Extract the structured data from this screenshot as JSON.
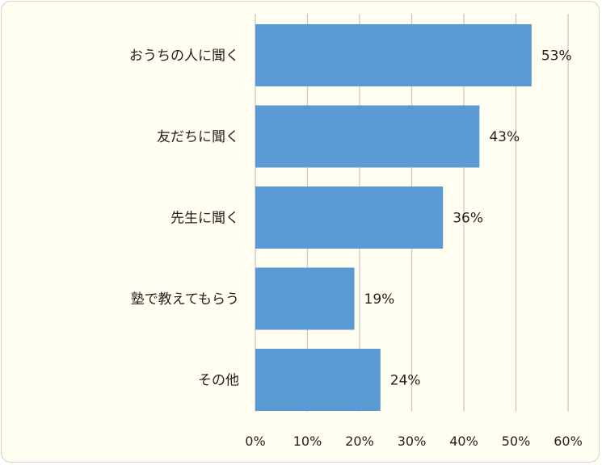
{
  "chart_data": {
    "type": "bar",
    "orientation": "horizontal",
    "categories": [
      "おうちの人に聞く",
      "友だちに聞く",
      "先生に聞く",
      "塾で教えてもらう",
      "その他"
    ],
    "values": [
      53,
      43,
      36,
      19,
      24
    ],
    "value_labels": [
      "53%",
      "43%",
      "36%",
      "19%",
      "24%"
    ],
    "x_ticks": [
      "0%",
      "10%",
      "20%",
      "30%",
      "40%",
      "50%",
      "60%"
    ],
    "xlim": [
      0,
      60
    ],
    "grid": true,
    "legend": "none",
    "colors": {
      "bar": "#5b9bd5",
      "grid": "#c8c8c8",
      "background": "#fffef0"
    }
  }
}
